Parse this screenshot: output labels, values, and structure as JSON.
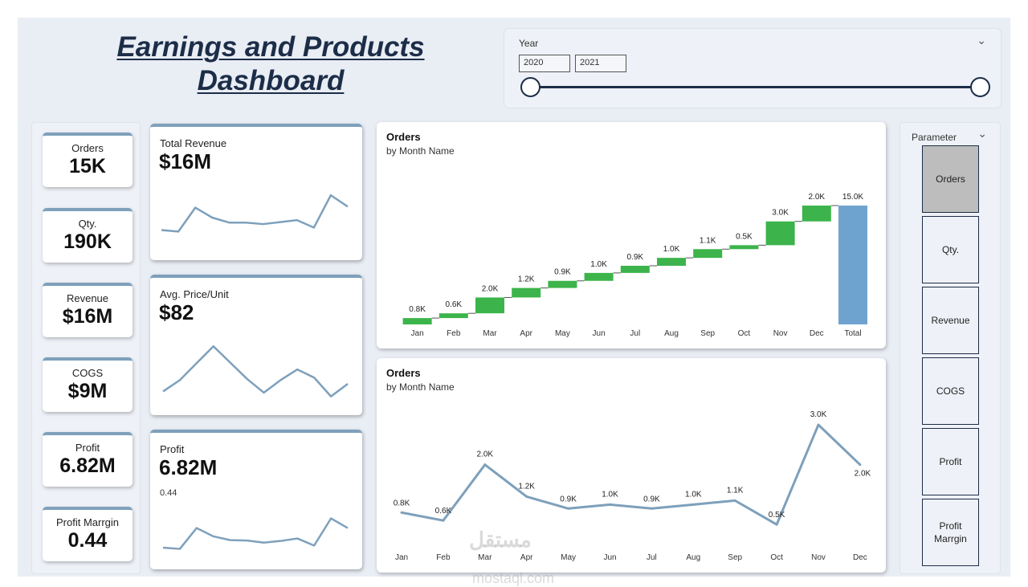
{
  "header": {
    "title": "Earnings and Products Dashboard"
  },
  "year_slicer": {
    "label": "Year",
    "start": "2020",
    "end": "2021"
  },
  "kpis": [
    {
      "label": "Orders",
      "value": "15K"
    },
    {
      "label": "Qty.",
      "value": "190K"
    },
    {
      "label": "Revenue",
      "value": "$16M"
    },
    {
      "label": "COGS",
      "value": "$9M"
    },
    {
      "label": "Profit",
      "value": "6.82M"
    },
    {
      "label": "Profit Marrgin",
      "value": "0.44"
    }
  ],
  "sparklines": [
    {
      "label": "Total Revenue",
      "value": "$16M"
    },
    {
      "label": "Avg. Price/Unit",
      "value": "$82"
    },
    {
      "label": "Profit",
      "value": "6.82M",
      "sublabel": "0.44"
    }
  ],
  "parameter": {
    "label": "Parameter",
    "options": [
      "Orders",
      "Qty.",
      "Revenue",
      "COGS",
      "Profit",
      "Profit Marrgin"
    ],
    "selected": "Orders"
  },
  "colors": {
    "accent": "#1c2d48",
    "increase": "#3cb44b",
    "total": "#6fa3cf",
    "line": "#7ea0bb"
  },
  "watermark": {
    "arabic": "مستقل",
    "latin": "mostaql.com"
  },
  "chart_data": [
    {
      "type": "waterfall",
      "title": "Orders",
      "subtitle": "by Month Name",
      "categories": [
        "Jan",
        "Feb",
        "Mar",
        "Apr",
        "May",
        "Jun",
        "Jul",
        "Aug",
        "Sep",
        "Oct",
        "Nov",
        "Dec",
        "Total"
      ],
      "values": [
        0.8,
        0.6,
        2.0,
        1.2,
        0.9,
        1.0,
        0.9,
        1.0,
        1.1,
        0.5,
        3.0,
        2.0,
        15.0
      ],
      "labels": [
        "0.8K",
        "0.6K",
        "2.0K",
        "1.2K",
        "0.9K",
        "1.0K",
        "0.9K",
        "1.0K",
        "1.1K",
        "0.5K",
        "3.0K",
        "2.0K",
        "15.0K"
      ],
      "unit": "K"
    },
    {
      "type": "line",
      "title": "Orders",
      "subtitle": "by Month Name",
      "categories": [
        "Jan",
        "Feb",
        "Mar",
        "Apr",
        "May",
        "Jun",
        "Jul",
        "Aug",
        "Sep",
        "Oct",
        "Nov",
        "Dec"
      ],
      "values": [
        0.8,
        0.6,
        2.0,
        1.2,
        0.9,
        1.0,
        0.9,
        1.0,
        1.1,
        0.5,
        3.0,
        2.0
      ],
      "labels": [
        "0.8K",
        "0.6K",
        "2.0K",
        "1.2K",
        "0.9K",
        "1.0K",
        "0.9K",
        "1.0K",
        "1.1K",
        "0.5K",
        "3.0K",
        "2.0K"
      ],
      "unit": "K"
    },
    {
      "type": "line",
      "title": "Total Revenue trend",
      "values": [
        0.25,
        0.22,
        0.7,
        0.5,
        0.4,
        0.4,
        0.37,
        0.41,
        0.45,
        0.3,
        0.95,
        0.72
      ]
    },
    {
      "type": "line",
      "title": "Avg. Price/Unit trend",
      "values": [
        0.2,
        0.38,
        0.65,
        0.92,
        0.66,
        0.4,
        0.18,
        0.38,
        0.55,
        0.42,
        0.12,
        0.32
      ]
    },
    {
      "type": "line",
      "title": "Profit trend",
      "values": [
        0.25,
        0.22,
        0.72,
        0.52,
        0.43,
        0.42,
        0.37,
        0.41,
        0.47,
        0.3,
        0.95,
        0.72
      ]
    }
  ]
}
